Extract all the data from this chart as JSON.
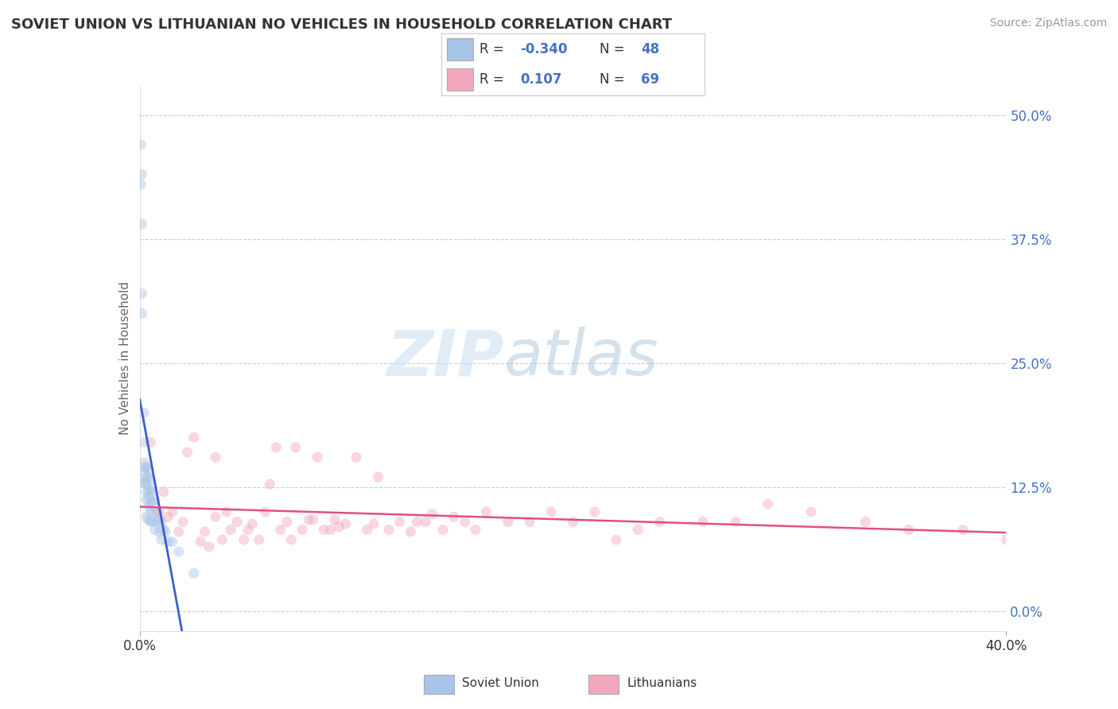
{
  "title": "SOVIET UNION VS LITHUANIAN NO VEHICLES IN HOUSEHOLD CORRELATION CHART",
  "source": "Source: ZipAtlas.com",
  "ylabel": "No Vehicles in Household",
  "yticks_labels": [
    "0.0%",
    "12.5%",
    "25.0%",
    "37.5%",
    "50.0%"
  ],
  "ytick_vals": [
    0.0,
    0.125,
    0.25,
    0.375,
    0.5
  ],
  "xrange": [
    0.0,
    0.4
  ],
  "yrange": [
    -0.02,
    0.53
  ],
  "legend_R1": "-0.340",
  "legend_N1": "48",
  "legend_R2": "0.107",
  "legend_N2": "69",
  "soviet_scatter_x": [
    0.0005,
    0.0005,
    0.001,
    0.001,
    0.001,
    0.001,
    0.002,
    0.002,
    0.002,
    0.002,
    0.002,
    0.0025,
    0.0025,
    0.003,
    0.003,
    0.003,
    0.003,
    0.003,
    0.003,
    0.004,
    0.004,
    0.004,
    0.004,
    0.004,
    0.004,
    0.005,
    0.005,
    0.005,
    0.005,
    0.005,
    0.006,
    0.006,
    0.006,
    0.007,
    0.007,
    0.007,
    0.008,
    0.008,
    0.009,
    0.009,
    0.01,
    0.01,
    0.011,
    0.012,
    0.013,
    0.015,
    0.018,
    0.025
  ],
  "soviet_scatter_y": [
    0.47,
    0.43,
    0.44,
    0.39,
    0.32,
    0.3,
    0.2,
    0.17,
    0.15,
    0.14,
    0.13,
    0.145,
    0.13,
    0.145,
    0.135,
    0.128,
    0.12,
    0.112,
    0.095,
    0.143,
    0.135,
    0.122,
    0.115,
    0.105,
    0.092,
    0.132,
    0.12,
    0.11,
    0.1,
    0.09,
    0.122,
    0.11,
    0.09,
    0.112,
    0.1,
    0.082,
    0.1,
    0.09,
    0.092,
    0.08,
    0.09,
    0.072,
    0.082,
    0.08,
    0.07,
    0.07,
    0.06,
    0.038
  ],
  "lithuanian_scatter_x": [
    0.005,
    0.009,
    0.011,
    0.013,
    0.015,
    0.018,
    0.02,
    0.022,
    0.025,
    0.028,
    0.03,
    0.032,
    0.035,
    0.035,
    0.038,
    0.04,
    0.042,
    0.045,
    0.048,
    0.05,
    0.052,
    0.055,
    0.058,
    0.06,
    0.063,
    0.065,
    0.068,
    0.07,
    0.072,
    0.075,
    0.078,
    0.08,
    0.082,
    0.085,
    0.088,
    0.09,
    0.092,
    0.095,
    0.1,
    0.105,
    0.108,
    0.11,
    0.115,
    0.12,
    0.125,
    0.128,
    0.132,
    0.135,
    0.14,
    0.145,
    0.15,
    0.155,
    0.16,
    0.17,
    0.18,
    0.19,
    0.2,
    0.21,
    0.22,
    0.23,
    0.24,
    0.26,
    0.275,
    0.29,
    0.31,
    0.335,
    0.355,
    0.38,
    0.4
  ],
  "lithuanian_scatter_y": [
    0.17,
    0.1,
    0.12,
    0.095,
    0.1,
    0.08,
    0.09,
    0.16,
    0.175,
    0.07,
    0.08,
    0.065,
    0.155,
    0.095,
    0.072,
    0.1,
    0.082,
    0.09,
    0.072,
    0.082,
    0.088,
    0.072,
    0.1,
    0.128,
    0.165,
    0.082,
    0.09,
    0.072,
    0.165,
    0.082,
    0.092,
    0.092,
    0.155,
    0.082,
    0.082,
    0.092,
    0.085,
    0.088,
    0.155,
    0.082,
    0.088,
    0.135,
    0.082,
    0.09,
    0.08,
    0.09,
    0.09,
    0.098,
    0.082,
    0.095,
    0.09,
    0.082,
    0.1,
    0.09,
    0.09,
    0.1,
    0.09,
    0.1,
    0.072,
    0.082,
    0.09,
    0.09,
    0.09,
    0.108,
    0.1,
    0.09,
    0.082,
    0.082,
    0.072
  ],
  "watermark_zip": "ZIP",
  "watermark_atlas": "atlas",
  "scatter_size": 90,
  "scatter_alpha": 0.45,
  "bg_color": "#ffffff",
  "grid_color": "#c0d0e0",
  "soviet_line_color": "#3a5fcd",
  "lithuanian_line_color": "#e05080",
  "soviet_scatter_color": "#a8c4e8",
  "lithuanian_scatter_color": "#f2a8bc",
  "tick_color": "#4472c4",
  "legend_text_color": "#333333",
  "legend_value_color": "#4472c4"
}
